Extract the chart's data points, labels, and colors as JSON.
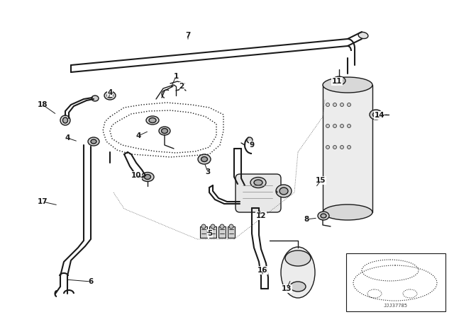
{
  "bg": "#f2f2f2",
  "lc": "#1a1a1a",
  "fig_width": 6.4,
  "fig_height": 4.48,
  "dpi": 100,
  "labels": [
    [
      "1",
      248,
      108
    ],
    [
      "2",
      256,
      122
    ],
    [
      "3",
      293,
      243
    ],
    [
      "4",
      155,
      131
    ],
    [
      "4",
      195,
      192
    ],
    [
      "4",
      95,
      195
    ],
    [
      "5",
      296,
      330
    ],
    [
      "6",
      128,
      398
    ],
    [
      "7",
      265,
      50
    ],
    [
      "8",
      432,
      310
    ],
    [
      "9",
      355,
      205
    ],
    [
      "10",
      192,
      248
    ],
    [
      "11",
      475,
      115
    ],
    [
      "12",
      368,
      305
    ],
    [
      "13",
      404,
      408
    ],
    [
      "14",
      535,
      163
    ],
    [
      "15",
      452,
      255
    ],
    [
      "16",
      370,
      382
    ],
    [
      "17",
      60,
      285
    ],
    [
      "18",
      60,
      148
    ]
  ]
}
